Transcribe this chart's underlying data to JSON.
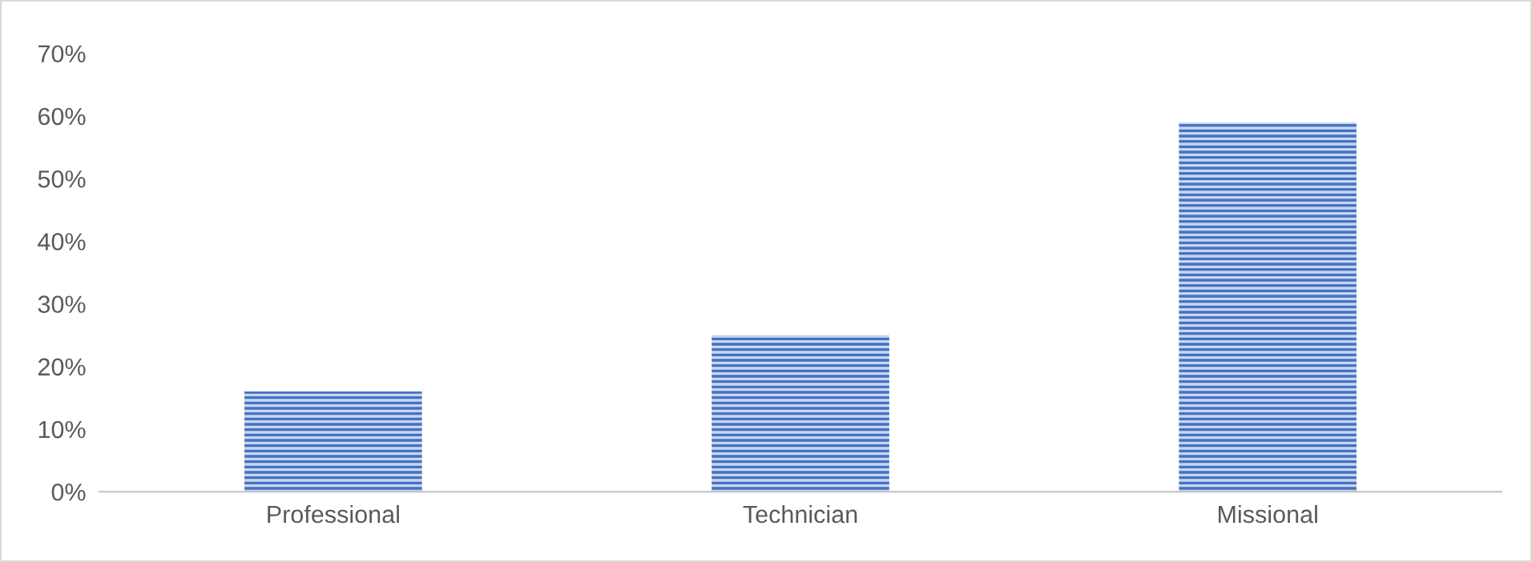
{
  "chart_data": {
    "type": "bar",
    "categories": [
      "Professional",
      "Technician",
      "Missional"
    ],
    "values": [
      16,
      25,
      59
    ],
    "color": "#4472c4",
    "ylim": [
      0,
      70
    ],
    "yticks": [
      {
        "value": 0,
        "label": "0%"
      },
      {
        "value": 10,
        "label": "10%"
      },
      {
        "value": 20,
        "label": "20%"
      },
      {
        "value": 30,
        "label": "30%"
      },
      {
        "value": 40,
        "label": "40%"
      },
      {
        "value": 50,
        "label": "50%"
      },
      {
        "value": 60,
        "label": "60%"
      },
      {
        "value": 70,
        "label": "70%"
      }
    ],
    "grid": false
  }
}
